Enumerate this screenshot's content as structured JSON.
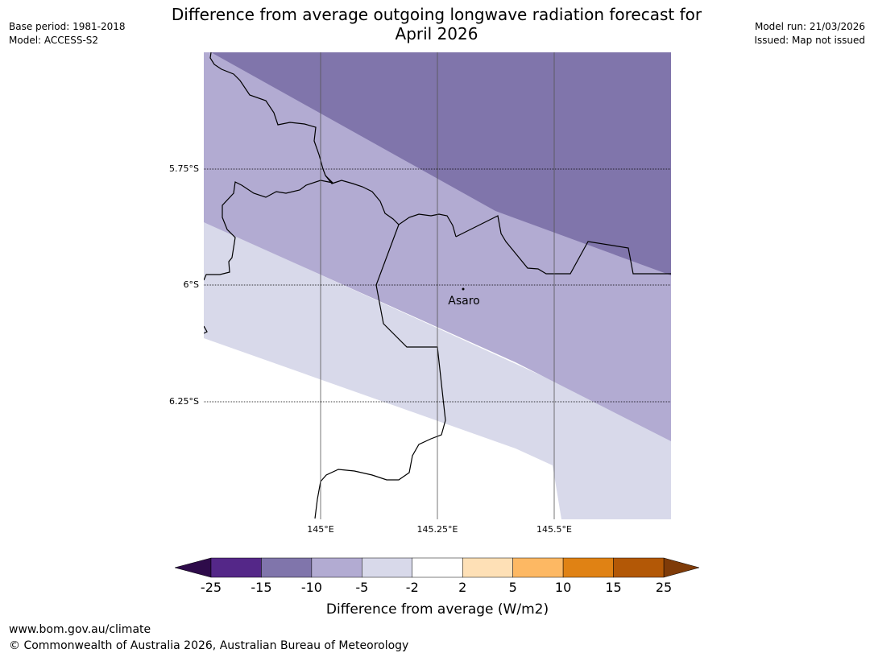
{
  "meta": {
    "base_period": "Base period: 1981-2018",
    "model": "Model: ACCESS-S2",
    "model_run": "Model run: 21/03/2026",
    "issued": "Issued: Map not issued"
  },
  "title": {
    "line1": "Difference from average outgoing longwave radiation forecast for",
    "line2": "April 2026"
  },
  "map": {
    "lat_ticks": [
      "5.75°S",
      "6°S",
      "6.25°S"
    ],
    "lon_ticks": [
      "145°E",
      "145.25°E",
      "145.5°E"
    ],
    "place": {
      "name": "Asaro"
    },
    "band_colors": {
      "-15 to -10": "#8075ab",
      "-10 to -5": "#b2abd2",
      "-5 to -2": "#d8d9ea"
    }
  },
  "colorbar": {
    "title": "Difference from average (W/m2)",
    "tick_labels": [
      "-25",
      "-15",
      "-10",
      "-5",
      "-2",
      "2",
      "5",
      "10",
      "15",
      "25"
    ],
    "under_color": "#2e0b4a",
    "over_color": "#7f3b08",
    "colors": [
      "#542788",
      "#8075ab",
      "#b2abd2",
      "#d8d9ea",
      "#ffffff",
      "#fee0b6",
      "#fdb863",
      "#e08214",
      "#b35806"
    ]
  },
  "footer": {
    "url": "www.bom.gov.au/climate",
    "copyright": "© Commonwealth of Australia 2026, Australian Bureau of Meteorology"
  }
}
